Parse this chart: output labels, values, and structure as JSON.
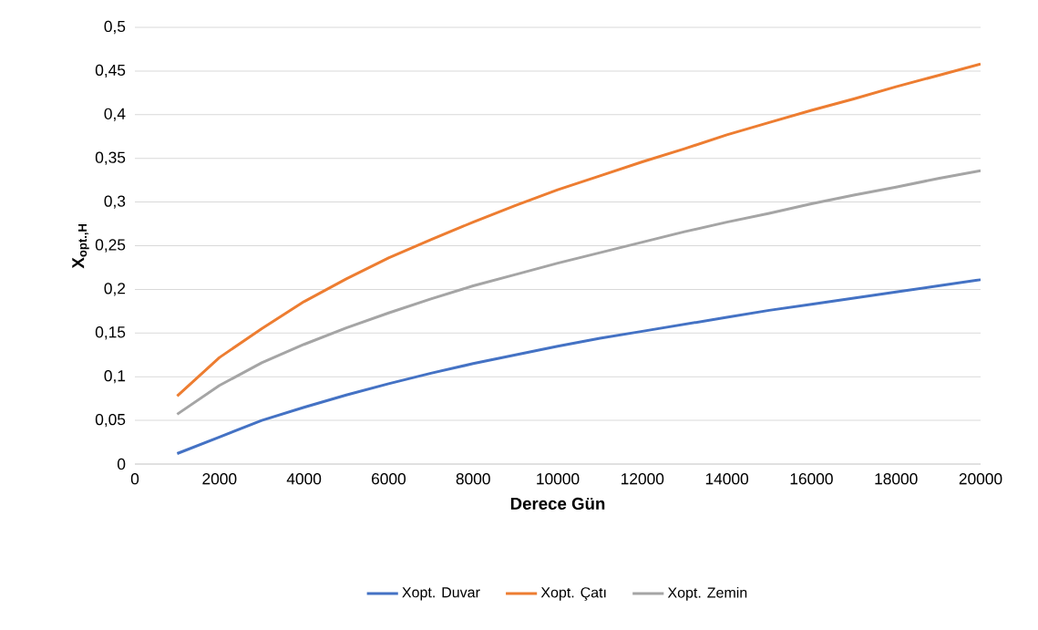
{
  "chart_data": {
    "type": "line",
    "xlabel": "Derece Gün",
    "ylabel": "X$_{opt.,H}$",
    "x": [
      1000,
      2000,
      3000,
      4000,
      5000,
      6000,
      7000,
      8000,
      9000,
      10000,
      11000,
      12000,
      13000,
      14000,
      15000,
      16000,
      17000,
      18000,
      19000,
      20000
    ],
    "series": [
      {
        "name": "Xopt. Duvar",
        "color": "#4472c4",
        "values": [
          0.012,
          0.031,
          0.05,
          0.065,
          0.079,
          0.092,
          0.104,
          0.115,
          0.125,
          0.135,
          0.144,
          0.152,
          0.16,
          0.168,
          0.176,
          0.183,
          0.19,
          0.197,
          0.204,
          0.211
        ]
      },
      {
        "name": "Xopt. Çatı",
        "color": "#ed7d31",
        "values": [
          0.078,
          0.122,
          0.155,
          0.186,
          0.212,
          0.236,
          0.257,
          0.277,
          0.296,
          0.314,
          0.33,
          0.346,
          0.361,
          0.377,
          0.391,
          0.405,
          0.418,
          0.432,
          0.445,
          0.458
        ]
      },
      {
        "name": "Xopt. Zemin",
        "color": "#a5a5a5",
        "values": [
          0.057,
          0.09,
          0.116,
          0.137,
          0.156,
          0.173,
          0.189,
          0.204,
          0.217,
          0.23,
          0.242,
          0.254,
          0.266,
          0.277,
          0.287,
          0.298,
          0.308,
          0.317,
          0.327,
          0.336
        ]
      }
    ],
    "xlim": [
      0,
      20000
    ],
    "ylim": [
      0,
      0.5
    ],
    "xticks": [
      0,
      2000,
      4000,
      6000,
      8000,
      10000,
      12000,
      14000,
      16000,
      18000,
      20000
    ],
    "yticks": [
      0,
      {
        "value": 0.05,
        "label": "0,05"
      },
      {
        "value": 0.1,
        "label": "0,1"
      },
      {
        "value": 0.15,
        "label": "0,15"
      },
      {
        "value": 0.2,
        "label": "0,2"
      },
      {
        "value": 0.25,
        "label": "0,25"
      },
      {
        "value": 0.3,
        "label": "0,3"
      },
      {
        "value": 0.35,
        "label": "0,35"
      },
      {
        "value": 0.4,
        "label": "0,4"
      },
      {
        "value": 0.45,
        "label": "0,45"
      },
      {
        "value": 0.5,
        "label": "0,5"
      }
    ],
    "grid": "y",
    "legend": "bottom",
    "marker": "none",
    "line_style": "solid"
  }
}
